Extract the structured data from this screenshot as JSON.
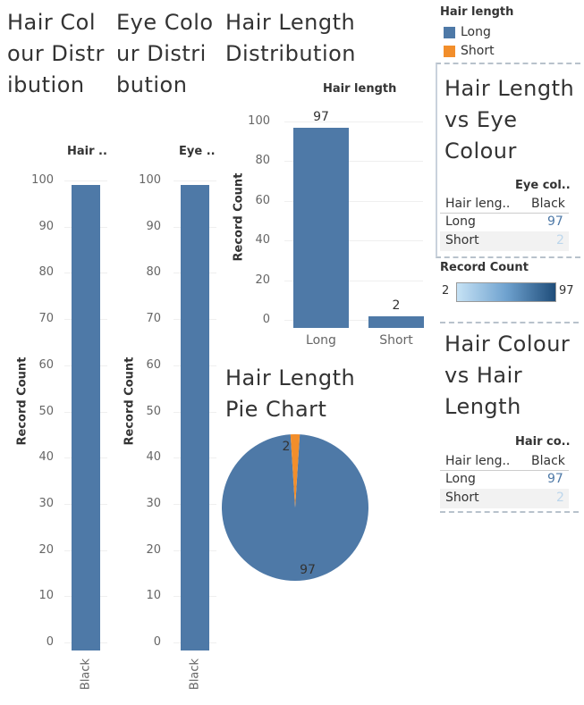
{
  "colors": {
    "long": "#4e79a7",
    "short": "#f28e2b",
    "grid": "#efefef",
    "text": "#333333",
    "muted": "#666666"
  },
  "titles": {
    "hair_colour": "Hair Colour Distribution",
    "eye_colour": "Eye Colour Distribution",
    "hair_length": "Hair Length Distribution",
    "pie": "Hair Length Pie Chart",
    "hl_vs_eye": "Hair Length vs Eye Colour",
    "hc_vs_hl": "Hair Colour vs Hair Length"
  },
  "legend": {
    "title": "Hair length",
    "items": [
      {
        "label": "Long",
        "color": "#4e79a7"
      },
      {
        "label": "Short",
        "color": "#f28e2b"
      }
    ]
  },
  "color_scale": {
    "title": "Record Count",
    "min_label": "2",
    "max_label": "97"
  },
  "tables": {
    "hl_vs_eye": {
      "col_group": "Eye col..",
      "row_header": "Hair leng..",
      "col_header": "Black",
      "rows": [
        {
          "label": "Long",
          "value": "97"
        },
        {
          "label": "Short",
          "value": "2"
        }
      ]
    },
    "hc_vs_hl": {
      "col_group": "Hair co..",
      "row_header": "Hair leng..",
      "col_header": "Black",
      "rows": [
        {
          "label": "Long",
          "value": "97"
        },
        {
          "label": "Short",
          "value": "2"
        }
      ]
    }
  },
  "chart_data": [
    {
      "type": "bar",
      "header": "Hair ..",
      "ylabel": "Record Count",
      "categories": [
        "Black"
      ],
      "values": [
        99
      ],
      "ylim": [
        0,
        100
      ],
      "yticks": [
        "100",
        "90",
        "80",
        "70",
        "60",
        "50",
        "40",
        "30",
        "20",
        "10",
        "0"
      ]
    },
    {
      "type": "bar",
      "header": "Eye ..",
      "ylabel": "Record Count",
      "categories": [
        "Black"
      ],
      "values": [
        99
      ],
      "ylim": [
        0,
        100
      ],
      "yticks": [
        "100",
        "90",
        "80",
        "70",
        "60",
        "50",
        "40",
        "30",
        "20",
        "10",
        "0"
      ]
    },
    {
      "type": "bar",
      "header": "Hair length",
      "ylabel": "Record Count",
      "categories": [
        "Long",
        "Short"
      ],
      "values": [
        97,
        2
      ],
      "data_labels": [
        "97",
        "2"
      ],
      "ylim": [
        0,
        100
      ],
      "yticks": [
        "100",
        "80",
        "60",
        "40",
        "20",
        "0"
      ]
    },
    {
      "type": "pie",
      "categories": [
        "Long",
        "Short"
      ],
      "values": [
        97,
        2
      ],
      "data_labels": [
        "97",
        "2"
      ]
    }
  ]
}
